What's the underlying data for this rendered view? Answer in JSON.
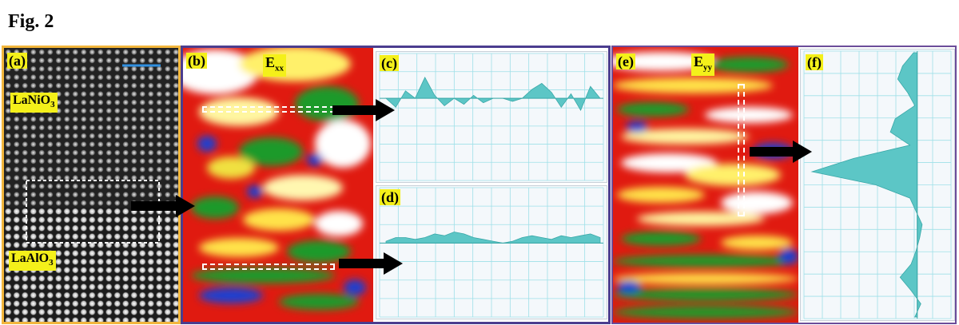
{
  "figure": {
    "title": "Fig. 2"
  },
  "panels": {
    "a": {
      "label": "(a)",
      "top_material": {
        "base": "LaNiO",
        "sub": "3"
      },
      "bottom_material": {
        "base": "LaAlO",
        "sub": "3"
      }
    },
    "b": {
      "label": "(b)",
      "component": {
        "base": "E",
        "sub": "xx"
      }
    },
    "c": {
      "label": "(c)"
    },
    "d": {
      "label": "(d)"
    },
    "e": {
      "label": "(e)",
      "component": {
        "base": "E",
        "sub": "yy"
      }
    },
    "f": {
      "label": "(f)"
    }
  },
  "colors": {
    "panel_a_border": "#f2b63c",
    "panel_bd_border": "#4b3d8f",
    "panel_ef_border": "#6b4c9a",
    "label_background": "#f4f01a",
    "profile_fill": "#5cc6c6",
    "scale_bar": "#2f8fe0",
    "arrow": "#000000"
  },
  "chart_data": [
    {
      "panel": "c",
      "type": "area",
      "x": [
        0,
        0.1,
        0.2,
        0.3,
        0.4,
        0.5,
        0.6,
        0.7,
        0.8,
        0.9,
        1.0,
        1.1,
        1.2,
        1.3,
        1.4,
        1.5,
        1.6,
        1.7,
        1.8,
        1.9,
        2.0,
        2.1,
        2.2
      ],
      "values": [
        0,
        -0.06,
        0.05,
        0.0,
        0.14,
        0.02,
        -0.05,
        0.0,
        -0.04,
        0.02,
        -0.03,
        0.0,
        0.0,
        -0.02,
        0.0,
        0.06,
        0.1,
        0.04,
        -0.06,
        0.03,
        -0.08,
        0.08,
        0.0
      ],
      "grid": true
    },
    {
      "panel": "d",
      "type": "area",
      "x": [
        0,
        0.1,
        0.2,
        0.3,
        0.4,
        0.5,
        0.6,
        0.7,
        0.8,
        0.9,
        1.0,
        1.1,
        1.2,
        1.3,
        1.4,
        1.5,
        1.6,
        1.7,
        1.8,
        1.9,
        2.0,
        2.1,
        2.2
      ],
      "values": [
        0.01,
        0.03,
        0.03,
        0.02,
        0.03,
        0.05,
        0.04,
        0.06,
        0.05,
        0.03,
        0.02,
        0.01,
        0.0,
        0.01,
        0.03,
        0.04,
        0.03,
        0.02,
        0.04,
        0.03,
        0.04,
        0.05,
        0.03
      ],
      "grid": true
    },
    {
      "panel": "f",
      "type": "area",
      "orientation": "vertical",
      "y": [
        0,
        0.05,
        0.1,
        0.15,
        0.2,
        0.25,
        0.3,
        0.35,
        0.4,
        0.45,
        0.5,
        0.55,
        0.6,
        0.65,
        0.7,
        0.75,
        0.8,
        0.85,
        0.9,
        0.95,
        1.0
      ],
      "values": [
        0.03,
        0.12,
        0.16,
        0.08,
        0.02,
        0.18,
        0.22,
        0.06,
        0.52,
        0.86,
        0.34,
        0.06,
        0.01,
        -0.04,
        -0.02,
        0.01,
        0.05,
        0.14,
        0.05,
        -0.03,
        0.02
      ],
      "grid": true
    }
  ]
}
